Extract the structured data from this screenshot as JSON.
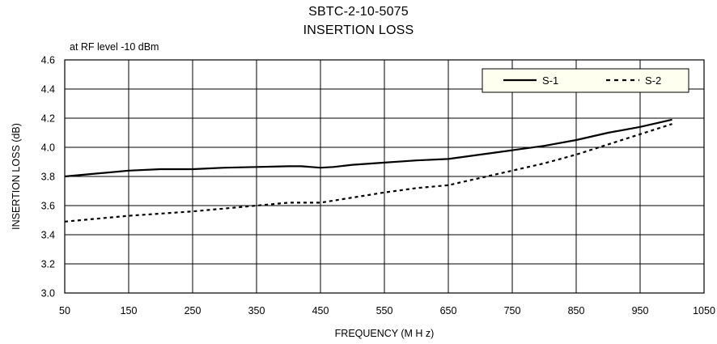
{
  "chart_data": {
    "type": "line",
    "title": "SBTC-2-10-5075",
    "subtitle": "INSERTION  LOSS",
    "note": "at RF level -10 dBm",
    "xlabel": "FREQUENCY (M H z)",
    "ylabel": "INSERTION LOSS (dB)",
    "xlim": [
      50,
      1050
    ],
    "ylim": [
      3.0,
      4.6
    ],
    "xticks": [
      50,
      150,
      250,
      350,
      450,
      550,
      650,
      750,
      850,
      950,
      1050
    ],
    "yticks": [
      "3.0",
      "3.2",
      "3.4",
      "3.6",
      "3.8",
      "4.0",
      "4.2",
      "4.4",
      "4.6"
    ],
    "grid": true,
    "legend_position": "top-right",
    "series": [
      {
        "name": "S-1",
        "style": "solid",
        "color": "#000000",
        "points": [
          [
            50,
            3.8
          ],
          [
            100,
            3.82
          ],
          [
            150,
            3.84
          ],
          [
            200,
            3.85
          ],
          [
            250,
            3.85
          ],
          [
            300,
            3.86
          ],
          [
            350,
            3.865
          ],
          [
            400,
            3.87
          ],
          [
            420,
            3.87
          ],
          [
            450,
            3.86
          ],
          [
            470,
            3.865
          ],
          [
            500,
            3.88
          ],
          [
            550,
            3.895
          ],
          [
            600,
            3.91
          ],
          [
            650,
            3.92
          ],
          [
            700,
            3.95
          ],
          [
            750,
            3.98
          ],
          [
            800,
            4.01
          ],
          [
            850,
            4.05
          ],
          [
            900,
            4.1
          ],
          [
            950,
            4.14
          ],
          [
            1000,
            4.19
          ]
        ]
      },
      {
        "name": "S-2",
        "style": "dashed",
        "color": "#000000",
        "points": [
          [
            50,
            3.49
          ],
          [
            100,
            3.51
          ],
          [
            150,
            3.53
          ],
          [
            200,
            3.545
          ],
          [
            250,
            3.56
          ],
          [
            300,
            3.58
          ],
          [
            350,
            3.6
          ],
          [
            400,
            3.62
          ],
          [
            450,
            3.62
          ],
          [
            500,
            3.655
          ],
          [
            550,
            3.69
          ],
          [
            600,
            3.72
          ],
          [
            650,
            3.74
          ],
          [
            700,
            3.79
          ],
          [
            750,
            3.84
          ],
          [
            800,
            3.89
          ],
          [
            850,
            3.95
          ],
          [
            900,
            4.02
          ],
          [
            950,
            4.09
          ],
          [
            1000,
            4.16
          ]
        ]
      }
    ]
  }
}
